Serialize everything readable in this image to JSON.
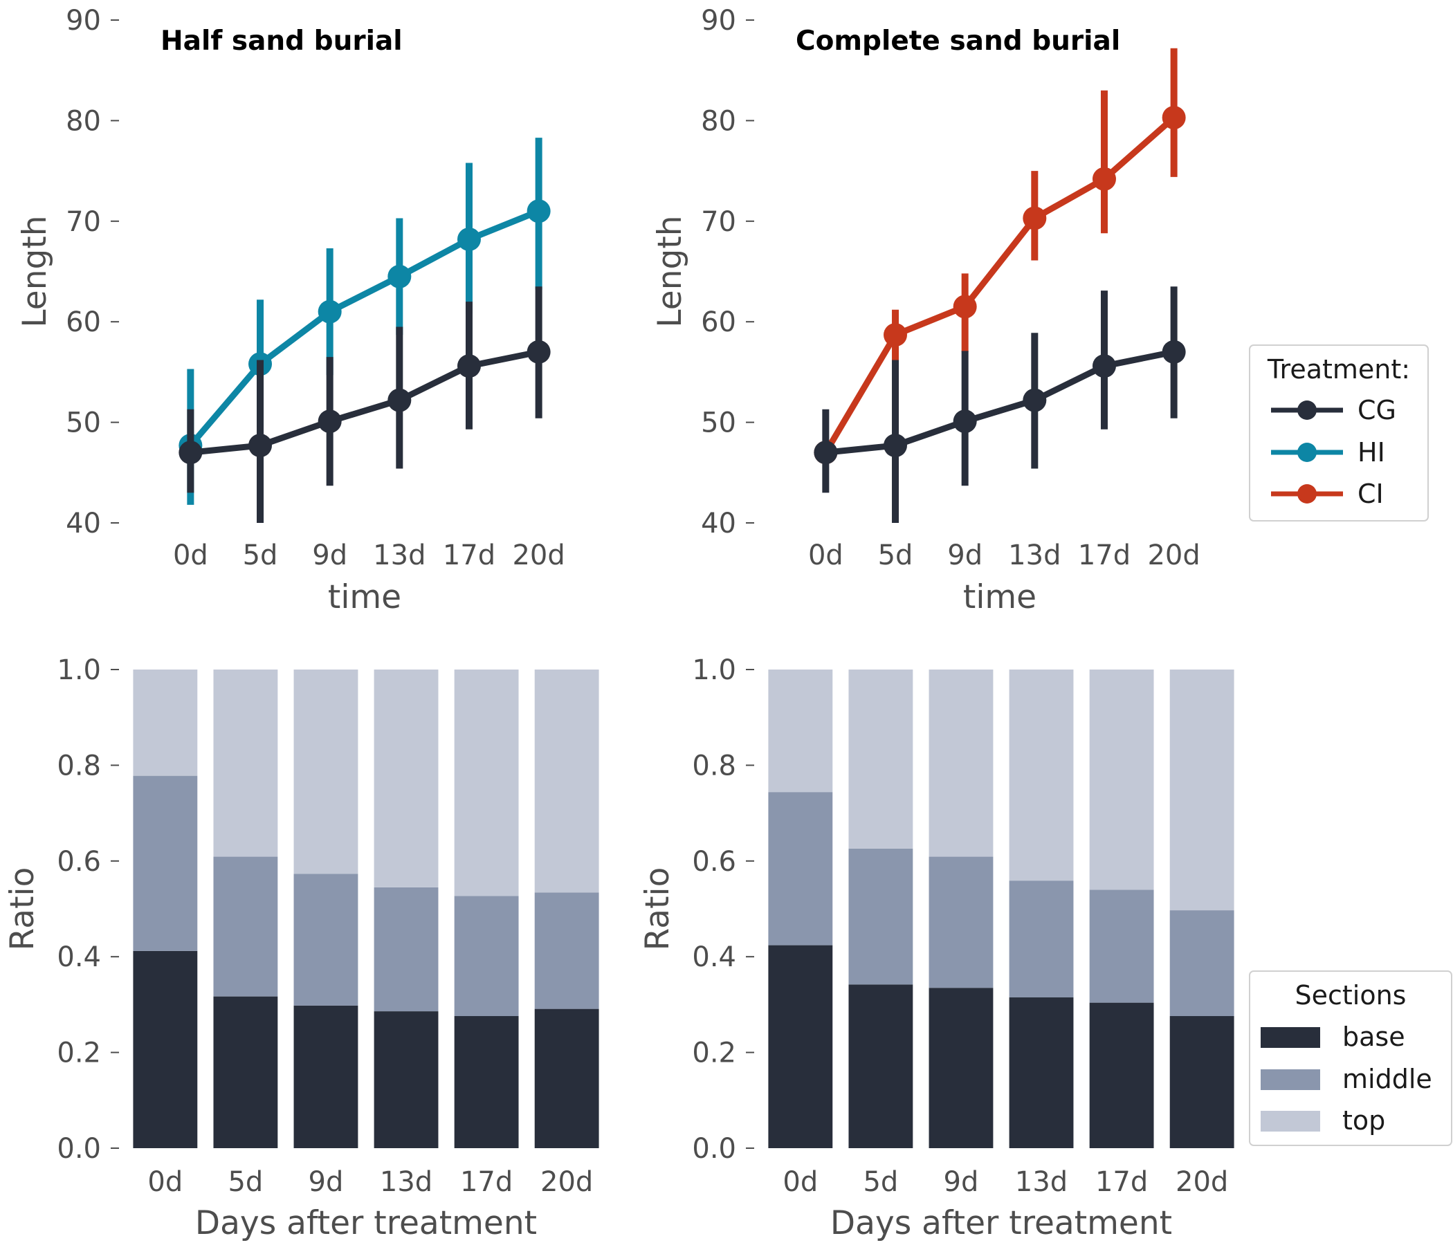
{
  "figure": {
    "legends": {
      "treatment": {
        "title": "Treatment:",
        "entries": [
          {
            "label": "CG",
            "color": "#282e3b"
          },
          {
            "label": "HI",
            "color": "#0d86a5"
          },
          {
            "label": "CI",
            "color": "#c7381c"
          }
        ]
      },
      "sections": {
        "title": "Sections",
        "entries": [
          {
            "label": "base",
            "color": "#282e3b"
          },
          {
            "label": "middle",
            "color": "#8a96ad"
          },
          {
            "label": "top",
            "color": "#c2c8d6"
          }
        ]
      }
    }
  },
  "chart_data": [
    {
      "type": "line",
      "title": "Half sand burial",
      "xlabel": "time",
      "ylabel": "Length",
      "categories": [
        "0d",
        "5d",
        "9d",
        "13d",
        "17d",
        "20d"
      ],
      "ylim": [
        40,
        90
      ],
      "yticks": [
        "40",
        "50",
        "60",
        "70",
        "80",
        "90"
      ],
      "grid": false,
      "series": [
        {
          "name": "HI",
          "color": "#0d86a5",
          "values": [
            47.7,
            55.8,
            61.0,
            64.5,
            68.2,
            71.0
          ],
          "err_low": [
            41.8,
            49.5,
            54.7,
            58.7,
            60.8,
            63.2
          ],
          "err_high": [
            55.3,
            62.2,
            67.3,
            70.3,
            75.8,
            78.3
          ]
        },
        {
          "name": "CG",
          "color": "#282e3b",
          "values": [
            47.0,
            47.7,
            50.1,
            52.2,
            55.6,
            57.0
          ],
          "err_low": [
            43.0,
            40.0,
            43.7,
            45.4,
            49.3,
            50.4
          ],
          "err_high": [
            51.3,
            56.2,
            56.5,
            59.5,
            62.0,
            63.5
          ]
        }
      ]
    },
    {
      "type": "line",
      "title": "Complete sand burial",
      "xlabel": "time",
      "ylabel": "Length",
      "categories": [
        "0d",
        "5d",
        "9d",
        "13d",
        "17d",
        "20d"
      ],
      "ylim": [
        40,
        90
      ],
      "yticks": [
        "40",
        "50",
        "60",
        "70",
        "80",
        "90"
      ],
      "grid": false,
      "legend": "right",
      "series": [
        {
          "name": "CI",
          "color": "#c7381c",
          "values": [
            47.0,
            58.7,
            61.5,
            70.3,
            74.2,
            80.3
          ],
          "err_low": [
            47.0,
            56.2,
            57.0,
            66.1,
            68.8,
            74.4
          ],
          "err_high": [
            47.0,
            61.2,
            64.8,
            75.0,
            83.0,
            87.2
          ]
        },
        {
          "name": "CG",
          "color": "#282e3b",
          "values": [
            47.0,
            47.7,
            50.1,
            52.2,
            55.6,
            57.0
          ],
          "err_low": [
            43.0,
            40.0,
            43.7,
            45.4,
            49.3,
            50.4
          ],
          "err_high": [
            51.3,
            56.2,
            57.1,
            58.9,
            63.1,
            63.5
          ]
        }
      ]
    },
    {
      "type": "bar",
      "stacked": true,
      "title": "",
      "xlabel": "Days after treatment",
      "ylabel": "Ratio",
      "categories": [
        "0d",
        "5d",
        "9d",
        "13d",
        "17d",
        "20d"
      ],
      "ylim": [
        0,
        1
      ],
      "yticks": [
        "0.0",
        "0.2",
        "0.4",
        "0.6",
        "0.8",
        "1.0"
      ],
      "grid": false,
      "series": [
        {
          "name": "base",
          "color": "#282e3b",
          "values": [
            0.412,
            0.317,
            0.298,
            0.286,
            0.276,
            0.291
          ]
        },
        {
          "name": "middle",
          "color": "#8a96ad",
          "values": [
            0.366,
            0.292,
            0.275,
            0.259,
            0.251,
            0.243
          ]
        },
        {
          "name": "top",
          "color": "#c2c8d6",
          "values": [
            0.222,
            0.391,
            0.427,
            0.455,
            0.473,
            0.466
          ]
        }
      ]
    },
    {
      "type": "bar",
      "stacked": true,
      "title": "",
      "xlabel": "Days after treatment",
      "ylabel": "Ratio",
      "categories": [
        "0d",
        "5d",
        "9d",
        "13d",
        "17d",
        "20d"
      ],
      "ylim": [
        0,
        1
      ],
      "yticks": [
        "0.0",
        "0.2",
        "0.4",
        "0.6",
        "0.8",
        "1.0"
      ],
      "grid": false,
      "legend": "right",
      "series": [
        {
          "name": "base",
          "color": "#282e3b",
          "values": [
            0.424,
            0.342,
            0.335,
            0.315,
            0.304,
            0.276
          ]
        },
        {
          "name": "middle",
          "color": "#8a96ad",
          "values": [
            0.32,
            0.284,
            0.274,
            0.244,
            0.236,
            0.221
          ]
        },
        {
          "name": "top",
          "color": "#c2c8d6",
          "values": [
            0.256,
            0.374,
            0.391,
            0.441,
            0.46,
            0.503
          ]
        }
      ]
    }
  ]
}
